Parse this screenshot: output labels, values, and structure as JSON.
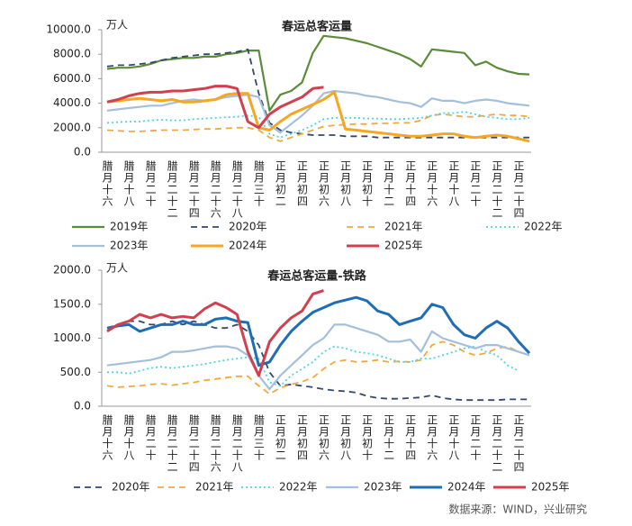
{
  "chart_data": [
    {
      "type": "line",
      "title": "春运总客运量",
      "unit": "万人",
      "categories": [
        "腊月十六",
        null,
        "腊月十八",
        null,
        "腊月二十",
        null,
        "腊月二十二",
        null,
        "腊月二十四",
        null,
        "腊月二十六",
        null,
        "腊月二十八",
        null,
        "腊月三十",
        null,
        "正月初二",
        null,
        "正月初四",
        null,
        "正月初六",
        null,
        "正月初八",
        null,
        "正月初十",
        null,
        "正月十二",
        null,
        "正月十四",
        null,
        "正月十六",
        null,
        "正月十八",
        null,
        "正月二十",
        null,
        "正月二十二",
        null,
        "正月二十四",
        null
      ],
      "ylim": [
        0,
        10000
      ],
      "yticks": [
        {
          "value": 0,
          "label": "0.0"
        },
        {
          "value": 2000,
          "label": "2000.0"
        },
        {
          "value": 4000,
          "label": "4000.0"
        },
        {
          "value": 6000,
          "label": "6000.0"
        },
        {
          "value": 8000,
          "label": "8000.0"
        },
        {
          "value": 10000,
          "label": "10000.0"
        }
      ],
      "series": [
        {
          "name": "2019年",
          "color": "#5b8c3a",
          "style": "solid",
          "values": [
            6800,
            6900,
            6900,
            7000,
            7200,
            7500,
            7600,
            7700,
            7700,
            7800,
            7800,
            8000,
            8100,
            8300,
            8300,
            3400,
            4700,
            5000,
            5700,
            8100,
            9500,
            9400,
            9300,
            9100,
            8900,
            8600,
            8300,
            8000,
            7600,
            7000,
            8400,
            8300,
            8200,
            8100,
            7100,
            7400,
            6900,
            6600,
            6400,
            6350
          ]
        },
        {
          "name": "2020年",
          "color": "#34486b",
          "style": "dashed",
          "values": [
            7000,
            7100,
            7100,
            7200,
            7300,
            7500,
            7700,
            7800,
            7900,
            8000,
            8000,
            8100,
            8200,
            8400,
            4800,
            2400,
            1800,
            1600,
            1500,
            1400,
            1400,
            1400,
            1300,
            1300,
            1300,
            1200,
            1200,
            1200,
            1200,
            1200,
            1200,
            1200,
            1200,
            1200,
            1200,
            1200,
            1200,
            1200,
            1200,
            1200
          ]
        },
        {
          "name": "2021年",
          "color": "#f2a93b",
          "style": "dashed",
          "values": [
            1800,
            1750,
            1700,
            1700,
            1750,
            1800,
            1800,
            1800,
            1850,
            1900,
            1900,
            1950,
            2000,
            2000,
            1800,
            1200,
            900,
            1200,
            1500,
            1800,
            2100,
            2200,
            2250,
            2300,
            2300,
            2350,
            2350,
            2400,
            2400,
            2600,
            3000,
            3100,
            3000,
            2900,
            2900,
            3000,
            3100,
            3000,
            3000,
            2900
          ]
        },
        {
          "name": "2022年",
          "color": "#4fd3e0",
          "style": "dotted",
          "values": [
            2400,
            2450,
            2500,
            2500,
            2600,
            2650,
            2600,
            2600,
            2700,
            2750,
            2800,
            2850,
            2900,
            3000,
            2900,
            1500,
            1200,
            1500,
            1800,
            2200,
            2700,
            2800,
            2800,
            2800,
            2750,
            2750,
            2700,
            2700,
            2750,
            2800,
            3000,
            3200,
            3200,
            3300,
            3100,
            2900,
            2800,
            2700,
            2700,
            2800
          ]
        },
        {
          "name": "2023年",
          "color": "#a3bfdb",
          "style": "solid",
          "values": [
            3400,
            3500,
            3600,
            3700,
            3800,
            3800,
            4000,
            4200,
            4300,
            4200,
            4300,
            4500,
            4600,
            4700,
            4500,
            2200,
            1600,
            2300,
            3000,
            3800,
            4800,
            5000,
            4900,
            4800,
            4600,
            4500,
            4300,
            4100,
            4000,
            3700,
            4400,
            4200,
            4200,
            4000,
            4200,
            4300,
            4200,
            4000,
            3900,
            3800
          ]
        },
        {
          "name": "2024年",
          "color": "#f5a623",
          "style": "solid",
          "values": [
            4100,
            4200,
            4300,
            4400,
            4300,
            4200,
            4300,
            4100,
            4100,
            4200,
            4300,
            4700,
            4800,
            4800,
            2000,
            1800,
            2500,
            3100,
            3500,
            3900,
            4300,
            4900,
            1900,
            1800,
            1700,
            1600,
            1500,
            1400,
            1300,
            1300,
            1400,
            1500,
            1500,
            1300,
            1200,
            1300,
            1400,
            1300,
            1100,
            900
          ]
        },
        {
          "name": "2025年",
          "color": "#d1404f",
          "style": "solid",
          "values": [
            4100,
            4300,
            4600,
            4800,
            4900,
            4900,
            5000,
            5000,
            5100,
            5200,
            5400,
            5400,
            5200,
            2500,
            2000,
            3100,
            3700,
            4100,
            4500,
            5200,
            5300,
            null,
            null,
            null,
            null,
            null,
            null,
            null,
            null,
            null,
            null,
            null,
            null,
            null,
            null,
            null,
            null,
            null,
            null,
            null
          ]
        }
      ]
    },
    {
      "type": "line",
      "title": "春运总客运量-铁路",
      "unit": "万人",
      "categories": [
        "腊月十六",
        null,
        "腊月十八",
        null,
        "腊月二十",
        null,
        "腊月二十二",
        null,
        "腊月二十四",
        null,
        "腊月二十六",
        null,
        "腊月二十八",
        null,
        "腊月三十",
        null,
        "正月初二",
        null,
        "正月初四",
        null,
        "正月初六",
        null,
        "正月初八",
        null,
        "正月初十",
        null,
        "正月十二",
        null,
        "正月十四",
        null,
        "正月十六",
        null,
        "正月十八",
        null,
        "正月二十",
        null,
        "正月二十二",
        null,
        "正月二十四",
        null
      ],
      "ylim": [
        0,
        2000
      ],
      "yticks": [
        {
          "value": 0,
          "label": "0.0"
        },
        {
          "value": 500,
          "label": "500.0"
        },
        {
          "value": 1000,
          "label": "1000.0"
        },
        {
          "value": 1500,
          "label": "1500.0"
        },
        {
          "value": 2000,
          "label": "2000.0"
        }
      ],
      "series": [
        {
          "name": "2020年",
          "color": "#34486b",
          "style": "dashed",
          "values": [
            1150,
            1200,
            1250,
            1250,
            1200,
            1200,
            1250,
            1200,
            1250,
            1200,
            1150,
            1150,
            1200,
            1100,
            900,
            500,
            300,
            320,
            300,
            280,
            250,
            230,
            220,
            200,
            150,
            120,
            110,
            110,
            120,
            130,
            160,
            120,
            100,
            90,
            90,
            90,
            90,
            100,
            100,
            100
          ]
        },
        {
          "name": "2021年",
          "color": "#f2a93b",
          "style": "dashed",
          "values": [
            300,
            280,
            290,
            300,
            320,
            330,
            310,
            330,
            350,
            380,
            400,
            420,
            440,
            440,
            300,
            180,
            270,
            320,
            360,
            420,
            550,
            650,
            680,
            650,
            660,
            680,
            650,
            660,
            650,
            680,
            900,
            950,
            900,
            800,
            750,
            780,
            850,
            880,
            800,
            750
          ]
        },
        {
          "name": "2022年",
          "color": "#4fd3e0",
          "style": "dotted",
          "values": [
            500,
            500,
            480,
            520,
            560,
            580,
            560,
            580,
            600,
            620,
            650,
            680,
            700,
            720,
            700,
            350,
            300,
            450,
            550,
            650,
            800,
            880,
            850,
            800,
            780,
            750,
            700,
            650,
            650,
            700,
            700,
            750,
            800,
            850,
            880,
            800,
            750,
            600,
            520,
            null
          ]
        },
        {
          "name": "2023年",
          "color": "#a3bfdb",
          "style": "solid",
          "values": [
            600,
            620,
            640,
            660,
            680,
            720,
            800,
            800,
            820,
            850,
            880,
            880,
            850,
            750,
            450,
            250,
            450,
            600,
            750,
            900,
            1000,
            1200,
            1200,
            1150,
            1100,
            1050,
            950,
            950,
            980,
            800,
            1100,
            1000,
            950,
            900,
            850,
            900,
            900,
            850,
            800,
            750
          ]
        },
        {
          "name": "2024年",
          "color": "#1f6db5",
          "style": "solid",
          "values": [
            1150,
            1180,
            1200,
            1100,
            1150,
            1200,
            1200,
            1250,
            1200,
            1200,
            1280,
            1300,
            1250,
            1230,
            600,
            650,
            900,
            1100,
            1250,
            1380,
            1450,
            1520,
            1560,
            1600,
            1550,
            1400,
            1350,
            1200,
            1250,
            1300,
            1500,
            1450,
            1200,
            1050,
            1000,
            1150,
            1250,
            1150,
            950,
            780
          ]
        },
        {
          "name": "2025年",
          "color": "#d1404f",
          "style": "solid",
          "values": [
            1100,
            1200,
            1250,
            1350,
            1300,
            1350,
            1300,
            1320,
            1300,
            1430,
            1520,
            1450,
            1350,
            800,
            450,
            950,
            1150,
            1300,
            1400,
            1650,
            1700,
            null,
            null,
            null,
            null,
            null,
            null,
            null,
            null,
            null,
            null,
            null,
            null,
            null,
            null,
            null,
            null,
            null,
            null,
            null
          ]
        }
      ]
    }
  ],
  "source": "数据来源：WIND，兴业研究"
}
